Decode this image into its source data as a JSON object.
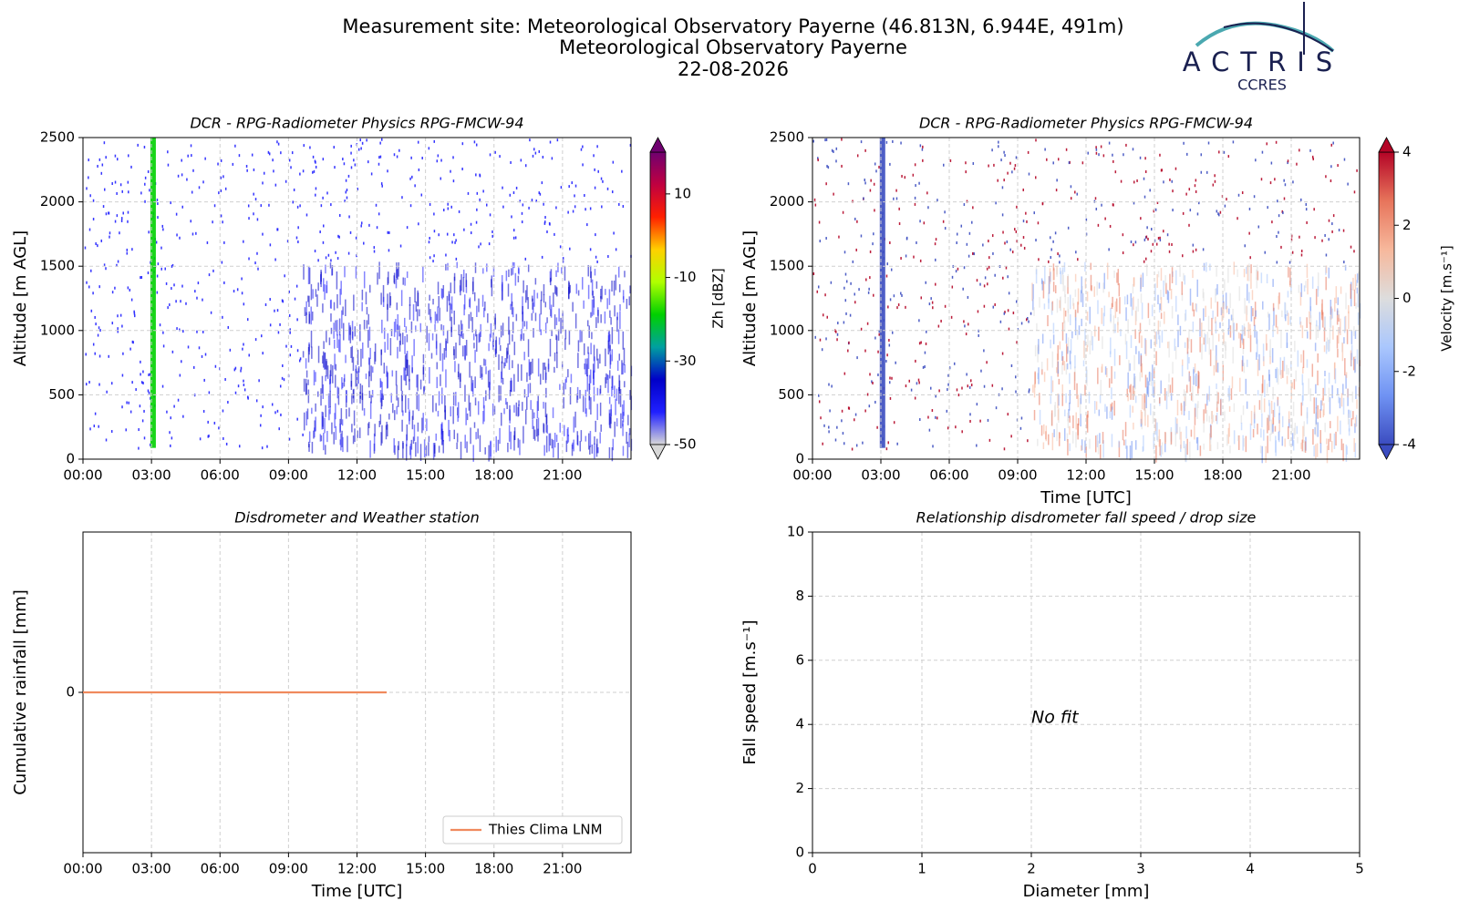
{
  "header": {
    "lines": [
      "Measurement site: Meteorological Observatory Payerne (46.813N, 6.944E, 491m)",
      "Meteorological Observatory Payerne",
      "22-08-2026"
    ]
  },
  "logo": {
    "name": "ACTRIS",
    "subname": "CCRES"
  },
  "chart_data": [
    {
      "type": "heatmap",
      "title": "DCR - RPG-Radiometer Physics RPG-FMCW-94",
      "y_label": "Altitude [m AGL]",
      "xlim": [
        0,
        24
      ],
      "xticks": [
        {
          "value": 0,
          "label": "00:00"
        },
        {
          "value": 3,
          "label": "03:00"
        },
        {
          "value": 6,
          "label": "06:00"
        },
        {
          "value": 9,
          "label": "09:00"
        },
        {
          "value": 12,
          "label": "12:00"
        },
        {
          "value": 15,
          "label": "15:00"
        },
        {
          "value": 18,
          "label": "18:00"
        },
        {
          "value": 21,
          "label": "21:00"
        }
      ],
      "ylim": [
        0,
        2500
      ],
      "yticks": [
        0,
        500,
        1000,
        1500,
        2000,
        2500
      ],
      "grid": true,
      "colorbar": {
        "label": "Zh [dBZ]",
        "clim": [
          -50,
          20
        ],
        "ticks": [
          -50,
          -30,
          -10,
          10
        ],
        "colormap": [
          "#d8d8d8",
          "#2020ff",
          "#0000c8",
          "#00a0a0",
          "#00d000",
          "#b0ff00",
          "#ffd000",
          "#ff2000",
          "#c00040",
          "#700070"
        ]
      }
    },
    {
      "type": "heatmap",
      "title": "DCR - RPG-Radiometer Physics RPG-FMCW-94",
      "y_label": "Altitude [m AGL]",
      "x_label": "Time [UTC]",
      "xlim": [
        0,
        24
      ],
      "xticks": [
        {
          "value": 0,
          "label": "00:00"
        },
        {
          "value": 3,
          "label": "03:00"
        },
        {
          "value": 6,
          "label": "06:00"
        },
        {
          "value": 9,
          "label": "09:00"
        },
        {
          "value": 12,
          "label": "12:00"
        },
        {
          "value": 15,
          "label": "15:00"
        },
        {
          "value": 18,
          "label": "18:00"
        },
        {
          "value": 21,
          "label": "21:00"
        }
      ],
      "ylim": [
        0,
        2500
      ],
      "yticks": [
        0,
        500,
        1000,
        1500,
        2000,
        2500
      ],
      "grid": true,
      "colorbar": {
        "label": "Velocity [m.s⁻¹]",
        "clim": [
          -4,
          4
        ],
        "ticks": [
          -4,
          -2,
          0,
          2,
          4
        ],
        "colormap": [
          "#3b4cc0",
          "#6f92f3",
          "#aac7fd",
          "#dddddd",
          "#f7b89c",
          "#e7745b",
          "#b40426"
        ]
      }
    },
    {
      "type": "line",
      "title": "Disdrometer and Weather station",
      "y_label": "Cumulative rainfall [mm]",
      "x_label": "Time [UTC]",
      "xlim": [
        0,
        24
      ],
      "xticks": [
        {
          "value": 0,
          "label": "00:00"
        },
        {
          "value": 3,
          "label": "03:00"
        },
        {
          "value": 6,
          "label": "06:00"
        },
        {
          "value": 9,
          "label": "09:00"
        },
        {
          "value": 12,
          "label": "12:00"
        },
        {
          "value": 15,
          "label": "15:00"
        },
        {
          "value": 18,
          "label": "18:00"
        },
        {
          "value": 21,
          "label": "21:00"
        }
      ],
      "ylim": [
        -0.055,
        0.055
      ],
      "yticks": [
        0
      ],
      "grid": true,
      "legend": "lower right",
      "x": [
        0,
        13.3
      ],
      "series": [
        {
          "name": "Thies Clima LNM",
          "color": "#f08a5d",
          "values": [
            0,
            0
          ]
        }
      ]
    },
    {
      "type": "scatter",
      "title": "Relationship disdrometer fall speed / drop size",
      "y_label": "Fall speed [m.s⁻¹]",
      "x_label": "Diameter [mm]",
      "xlim": [
        0,
        5
      ],
      "xticks": [
        0,
        1,
        2,
        3,
        4,
        5
      ],
      "ylim": [
        0,
        10
      ],
      "yticks": [
        0,
        2,
        4,
        6,
        8,
        10
      ],
      "grid": true,
      "annotation": "No fit"
    }
  ]
}
